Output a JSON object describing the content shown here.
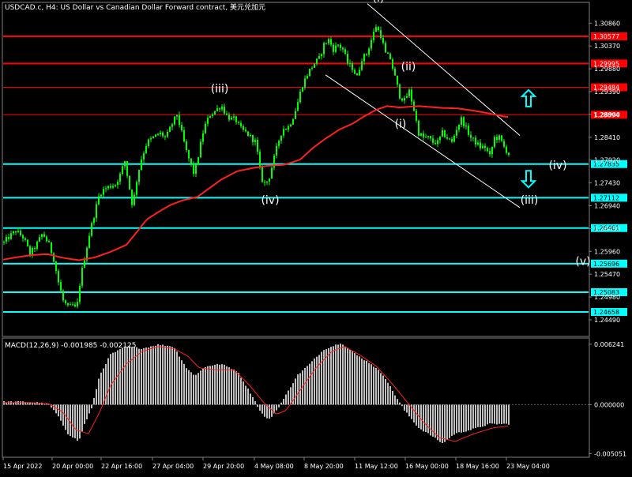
{
  "chart_title": "USDCAD.c, H4:  US Dollar vs Canadian Dollar Forward contract, 美元兑加元",
  "macd_label": "MACD(12,26,9) -0.001985 -0.002125",
  "colors": {
    "background": "#000000",
    "candle": "#00ff00",
    "ma": "#ff2020",
    "resistance": "#ff0000",
    "support": "#00ffff",
    "channel": "#ffffff",
    "macd_hist": "#c0c0c0",
    "macd_signal": "#ff2020",
    "label_red_bg": "#ff0000",
    "label_cyan_bg": "#00ffff",
    "arrow": "#00ffff"
  },
  "chart_data": [
    {
      "type": "candlestick",
      "symbol": "USDCAD.c",
      "timeframe": "H4",
      "ylim": [
        1.2415,
        1.3129
      ],
      "y_ticks": [
        "1.30860",
        "1.30370",
        "1.29880",
        "1.29390",
        "1.28900",
        "1.28410",
        "1.27920",
        "1.27430",
        "1.26940",
        "1.26450",
        "1.25960",
        "1.25470",
        "1.24980",
        "1.24490"
      ],
      "x_ticks": [
        "15 Apr 2022",
        "20 Apr 00:00",
        "22 Apr 16:00",
        "27 Apr 04:00",
        "29 Apr 20:00",
        "4 May 08:00",
        "8 May 20:00",
        "11 May 12:00",
        "16 May 00:00",
        "18 May 16:00",
        "23 May 04:00"
      ],
      "price_path": [
        [
          0,
          1.2605
        ],
        [
          10,
          1.2625
        ],
        [
          20,
          1.264
        ],
        [
          30,
          1.2625
        ],
        [
          38,
          1.259
        ],
        [
          46,
          1.261
        ],
        [
          54,
          1.2635
        ],
        [
          62,
          1.261
        ],
        [
          68,
          1.258
        ],
        [
          74,
          1.253
        ],
        [
          80,
          1.249
        ],
        [
          86,
          1.2475
        ],
        [
          92,
          1.248
        ],
        [
          97,
          1.247
        ],
        [
          102,
          1.254
        ],
        [
          108,
          1.259
        ],
        [
          114,
          1.264
        ],
        [
          120,
          1.268
        ],
        [
          126,
          1.272
        ],
        [
          132,
          1.273
        ],
        [
          138,
          1.2735
        ],
        [
          146,
          1.274
        ],
        [
          152,
          1.276
        ],
        [
          158,
          1.279
        ],
        [
          164,
          1.273
        ],
        [
          168,
          1.269
        ],
        [
          172,
          1.274
        ],
        [
          178,
          1.279
        ],
        [
          186,
          1.283
        ],
        [
          194,
          1.284
        ],
        [
          202,
          1.285
        ],
        [
          210,
          1.284
        ],
        [
          218,
          1.287
        ],
        [
          224,
          1.289
        ],
        [
          230,
          1.285
        ],
        [
          236,
          1.281
        ],
        [
          242,
          1.278
        ],
        [
          246,
          1.276
        ],
        [
          252,
          1.281
        ],
        [
          258,
          1.286
        ],
        [
          266,
          1.289
        ],
        [
          274,
          1.29
        ],
        [
          280,
          1.291
        ],
        [
          286,
          1.289
        ],
        [
          292,
          1.288
        ],
        [
          298,
          1.288
        ],
        [
          304,
          1.286
        ],
        [
          312,
          1.285
        ],
        [
          318,
          1.284
        ],
        [
          324,
          1.283
        ],
        [
          330,
          1.276
        ],
        [
          334,
          1.274
        ],
        [
          340,
          1.275
        ],
        [
          346,
          1.279
        ],
        [
          352,
          1.283
        ],
        [
          358,
          1.286
        ],
        [
          364,
          1.286
        ],
        [
          370,
          1.288
        ],
        [
          376,
          1.291
        ],
        [
          382,
          1.295
        ],
        [
          390,
          1.298
        ],
        [
          398,
          1.3
        ],
        [
          404,
          1.301
        ],
        [
          410,
          1.304
        ],
        [
          416,
          1.305
        ],
        [
          422,
          1.303
        ],
        [
          428,
          1.304
        ],
        [
          434,
          1.303
        ],
        [
          440,
          1.3
        ],
        [
          446,
          1.299
        ],
        [
          452,
          1.297
        ],
        [
          458,
          1.301
        ],
        [
          464,
          1.302
        ],
        [
          470,
          1.305
        ],
        [
          476,
          1.308
        ],
        [
          482,
          1.306
        ],
        [
          488,
          1.302
        ],
        [
          494,
          1.301
        ],
        [
          500,
          1.297
        ],
        [
          506,
          1.293
        ],
        [
          512,
          1.292
        ],
        [
          518,
          1.294
        ],
        [
          524,
          1.29
        ],
        [
          530,
          1.285
        ],
        [
          536,
          1.284
        ],
        [
          542,
          1.284
        ],
        [
          548,
          1.283
        ],
        [
          554,
          1.283
        ],
        [
          560,
          1.285
        ],
        [
          566,
          1.284
        ],
        [
          572,
          1.283
        ],
        [
          578,
          1.286
        ],
        [
          584,
          1.288
        ],
        [
          590,
          1.286
        ],
        [
          596,
          1.284
        ],
        [
          602,
          1.283
        ],
        [
          608,
          1.282
        ],
        [
          614,
          1.282
        ],
        [
          620,
          1.28
        ],
        [
          626,
          1.284
        ],
        [
          632,
          1.284
        ],
        [
          638,
          1.282
        ],
        [
          644,
          1.2805
        ]
      ],
      "ma_path": [
        [
          0,
          1.2577
        ],
        [
          20,
          1.2583
        ],
        [
          40,
          1.2588
        ],
        [
          60,
          1.259
        ],
        [
          80,
          1.2582
        ],
        [
          100,
          1.2577
        ],
        [
          120,
          1.2583
        ],
        [
          140,
          1.2595
        ],
        [
          160,
          1.261
        ],
        [
          172,
          1.2635
        ],
        [
          186,
          1.2665
        ],
        [
          200,
          1.268
        ],
        [
          215,
          1.2695
        ],
        [
          230,
          1.2705
        ],
        [
          250,
          1.2713
        ],
        [
          262,
          1.2728
        ],
        [
          280,
          1.275
        ],
        [
          300,
          1.2768
        ],
        [
          320,
          1.2775
        ],
        [
          340,
          1.278
        ],
        [
          360,
          1.2782
        ],
        [
          380,
          1.2793
        ],
        [
          396,
          1.2818
        ],
        [
          412,
          1.2838
        ],
        [
          430,
          1.2858
        ],
        [
          446,
          1.287
        ],
        [
          460,
          1.2885
        ],
        [
          476,
          1.29
        ],
        [
          490,
          1.2908
        ],
        [
          506,
          1.2905
        ],
        [
          530,
          1.2908
        ],
        [
          560,
          1.2904
        ],
        [
          580,
          1.2903
        ],
        [
          600,
          1.2898
        ],
        [
          620,
          1.2892
        ],
        [
          640,
          1.2885
        ]
      ],
      "horizontal_levels": [
        {
          "price": "1.30577",
          "value": 1.30577,
          "kind": "resistance",
          "thickness": 2
        },
        {
          "price": "1.29995",
          "value": 1.29995,
          "kind": "resistance",
          "thickness": 2
        },
        {
          "price": "1.29484",
          "value": 1.29484,
          "kind": "resistance",
          "thickness": 1
        },
        {
          "price": "1.28894",
          "value": 1.28894,
          "kind": "resistance",
          "thickness": 1
        },
        {
          "price": "1.27835",
          "value": 1.27835,
          "kind": "support",
          "thickness": 2
        },
        {
          "price": "1.27112",
          "value": 1.27112,
          "kind": "support",
          "thickness": 2
        },
        {
          "price": "1.26461",
          "value": 1.26461,
          "kind": "support",
          "thickness": 2
        },
        {
          "price": "1.25696",
          "value": 1.25696,
          "kind": "support",
          "thickness": 2
        },
        {
          "price": "1.25083",
          "value": 1.25083,
          "kind": "support",
          "thickness": 2
        },
        {
          "price": "1.24658",
          "value": 1.24658,
          "kind": "support",
          "thickness": 2
        }
      ],
      "channel_lines": [
        {
          "from": [
            465,
            1.3128
          ],
          "to": [
            658,
            1.2845
          ]
        },
        {
          "from": [
            412,
            1.2975
          ],
          "to": [
            658,
            1.269
          ]
        }
      ],
      "wave_labels": [
        {
          "text": "(i)",
          "x": 479,
          "price": 1.3132
        },
        {
          "text": "(ii)",
          "x": 517,
          "price": 1.2985
        },
        {
          "text": "(iii)",
          "x": 278,
          "price": 1.2937
        },
        {
          "text": "(i)",
          "x": 507,
          "price": 1.2862
        },
        {
          "text": "(iv)",
          "x": 706,
          "price": 1.2773
        },
        {
          "text": "(iv)",
          "x": 342,
          "price": 1.2698
        },
        {
          "text": "(iii)",
          "x": 670,
          "price": 1.2698
        },
        {
          "text": "(v)",
          "x": 738,
          "price": 1.2567
        }
      ],
      "arrows": [
        {
          "direction": "up",
          "x": 669,
          "price": 1.2924
        },
        {
          "direction": "down",
          "x": 669,
          "price": 1.2752
        }
      ]
    },
    {
      "type": "bar",
      "name": "MACD(12,26,9)",
      "main": -0.001985,
      "signal": -0.002125,
      "ylim": [
        -0.00535,
        0.0068
      ],
      "y_ticks": [
        "0.006241",
        "0.000000",
        "-0.005051"
      ],
      "hist_path": [
        [
          0,
          0.0003
        ],
        [
          30,
          0.0003
        ],
        [
          50,
          0.0002
        ],
        [
          62,
          0.0
        ],
        [
          72,
          -0.001
        ],
        [
          86,
          -0.003
        ],
        [
          100,
          -0.0038
        ],
        [
          106,
          -0.0022
        ],
        [
          116,
          -0.0004
        ],
        [
          126,
          0.003
        ],
        [
          140,
          0.0052
        ],
        [
          160,
          0.006
        ],
        [
          180,
          0.0058
        ],
        [
          200,
          0.0062
        ],
        [
          220,
          0.006
        ],
        [
          236,
          0.0038
        ],
        [
          246,
          0.003
        ],
        [
          262,
          0.004
        ],
        [
          280,
          0.0042
        ],
        [
          300,
          0.0035
        ],
        [
          320,
          0.0008
        ],
        [
          330,
          -0.0008
        ],
        [
          340,
          -0.0016
        ],
        [
          350,
          -0.0006
        ],
        [
          362,
          0.001
        ],
        [
          376,
          0.003
        ],
        [
          392,
          0.0042
        ],
        [
          410,
          0.0057
        ],
        [
          432,
          0.0064
        ],
        [
          450,
          0.0052
        ],
        [
          470,
          0.0042
        ],
        [
          486,
          0.003
        ],
        [
          500,
          0.001
        ],
        [
          512,
          -0.0006
        ],
        [
          530,
          -0.0024
        ],
        [
          546,
          -0.0032
        ],
        [
          560,
          -0.004
        ],
        [
          576,
          -0.003
        ],
        [
          596,
          -0.0026
        ],
        [
          620,
          -0.002
        ],
        [
          644,
          -0.002
        ]
      ],
      "signal_path": [
        [
          0,
          0.0002
        ],
        [
          40,
          0.0002
        ],
        [
          62,
          0.0001
        ],
        [
          80,
          -0.0008
        ],
        [
          96,
          -0.0026
        ],
        [
          112,
          -0.003
        ],
        [
          126,
          -0.0008
        ],
        [
          140,
          0.002
        ],
        [
          160,
          0.0042
        ],
        [
          180,
          0.0055
        ],
        [
          200,
          0.006
        ],
        [
          220,
          0.0058
        ],
        [
          238,
          0.005
        ],
        [
          252,
          0.0038
        ],
        [
          272,
          0.0036
        ],
        [
          296,
          0.0036
        ],
        [
          316,
          0.002
        ],
        [
          334,
          0.0002
        ],
        [
          350,
          -0.001
        ],
        [
          362,
          -0.0006
        ],
        [
          380,
          0.0015
        ],
        [
          400,
          0.0038
        ],
        [
          420,
          0.0055
        ],
        [
          436,
          0.006
        ],
        [
          454,
          0.0052
        ],
        [
          476,
          0.004
        ],
        [
          496,
          0.0022
        ],
        [
          516,
          0.0002
        ],
        [
          536,
          -0.0018
        ],
        [
          556,
          -0.0034
        ],
        [
          576,
          -0.0038
        ],
        [
          600,
          -0.003
        ],
        [
          624,
          -0.0024
        ],
        [
          644,
          -0.0022
        ]
      ]
    }
  ]
}
